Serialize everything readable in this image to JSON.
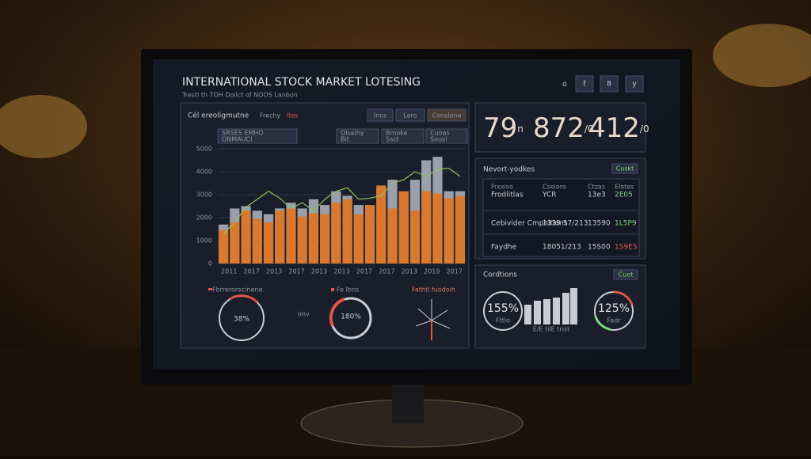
{
  "header": {
    "title": "INTERNATIONAL STOCK MARKET LOTESING",
    "subtitle": "Trestl th TOH Doilct of NOOS Lanbon",
    "icons": [
      "f",
      "8",
      "y"
    ]
  },
  "chart_panel": {
    "title": "Cél ereoligmutne",
    "filter": "Frechy",
    "filter_value": "Ites",
    "buttons": [
      "Inos",
      "Lero",
      "Conslone"
    ],
    "legend_boxes": [
      [
        "SRSES EMHO",
        "ONMAUCI"
      ],
      [
        "Oiseihy",
        "Bit"
      ],
      [
        "Bmoke",
        "Ssct"
      ],
      [
        "Cuoas",
        "Sousl"
      ]
    ]
  },
  "chart": {
    "type": "bar",
    "categories": [
      "2011",
      null,
      "2017",
      null,
      "2013",
      null,
      "2017",
      null,
      "2013",
      null,
      "2013",
      null,
      "2017",
      null,
      "2017",
      null,
      "2013",
      null,
      "2019",
      null,
      "2017",
      null
    ],
    "series": [
      {
        "color": "#9aa0ab",
        "values": [
          1700,
          2400,
          2500,
          2300,
          2150,
          2400,
          2650,
          2400,
          2800,
          2550,
          3150,
          2950,
          2550,
          2450,
          3300,
          3650,
          2950,
          3650,
          4500,
          4650,
          3150,
          3150
        ]
      },
      {
        "color": "#d9782f",
        "values": [
          1450,
          1800,
          2300,
          1950,
          1800,
          2300,
          2400,
          2050,
          2200,
          2150,
          2650,
          2800,
          2150,
          2550,
          3400,
          2400,
          3150,
          2300,
          3150,
          3050,
          2850,
          2950
        ]
      },
      {
        "color": "#8fc25a",
        "values": [
          1300,
          1800,
          2450,
          2800,
          3150,
          2850,
          2400,
          2650,
          2300,
          2800,
          3150,
          3300,
          2800,
          2850,
          2950,
          3500,
          3650,
          4000,
          3800,
          4100,
          4150,
          3800
        ]
      }
    ],
    "ylim": [
      0,
      5000
    ],
    "yticks": [
      0,
      1000,
      2000,
      3000,
      4000,
      5000
    ],
    "grid": true
  },
  "gauges_left": [
    {
      "title": "Fbrrerorecinene",
      "value": "38%"
    },
    {
      "title": "Fe Ibns",
      "value": "180%"
    },
    {
      "title": "Fathtl fuodoih"
    }
  ],
  "middle_note": "lmv",
  "stats": [
    {
      "big": "79",
      "small": "n"
    },
    {
      "big": "872",
      "small": "/0"
    },
    {
      "big": "412",
      "small": "/0"
    }
  ],
  "table": {
    "title": "Nevort-yodkes",
    "button": "Cuskt",
    "header": [
      "Frxxiso",
      "Cseioro",
      "Ctzas",
      "Elotes"
    ],
    "rows": [
      [
        "Frodlitlas",
        "YCR",
        "13e3",
        "2E05"
      ],
      [
        "Cebivider Cmphitions",
        "1339 57/213",
        "13590",
        "1L5P9"
      ],
      [
        "Faydhe",
        "18051/213",
        "15S00",
        "1S9ES"
      ]
    ]
  },
  "conditions": {
    "title": "Cordtions",
    "button": "Cuot",
    "left_value": "155%",
    "left_caption": "Fttlo",
    "right_value": "125%",
    "right_caption": "Fadr",
    "bar_caption": "E/E tilE trist"
  }
}
